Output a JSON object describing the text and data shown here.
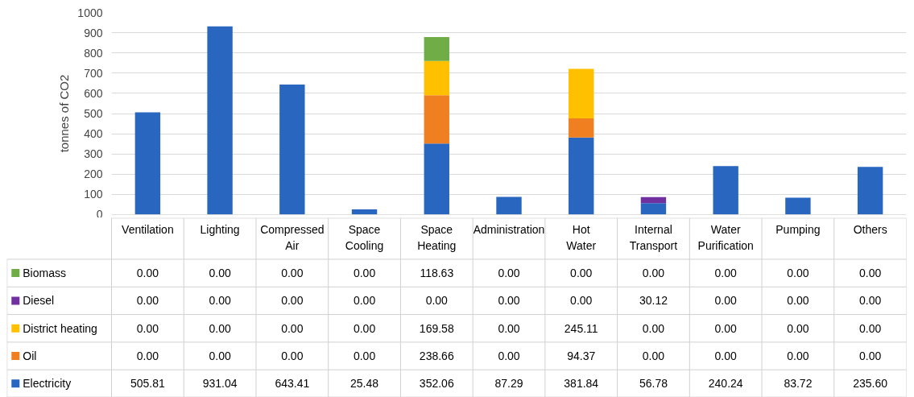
{
  "chart_data": {
    "type": "bar",
    "stacked": true,
    "ylabel": "tonnes of CO2",
    "categories": [
      "Ventilation",
      "Lighting",
      "Compressed Air",
      "Space Cooling",
      "Space Heating",
      "Administration",
      "Hot Water",
      "Internal Transport",
      "Water Purification",
      "Pumping",
      "Others"
    ],
    "series": [
      {
        "name": "Electricity",
        "color": "#2866c0",
        "values": [
          505.81,
          931.04,
          643.41,
          25.48,
          352.06,
          87.29,
          381.84,
          56.78,
          240.24,
          83.72,
          235.6
        ],
        "value_labels": [
          "505.81",
          "931.04",
          "643.41",
          "25.48",
          "352.06",
          "87.29",
          "381.84",
          "56.78",
          "240.24",
          "83.72",
          "235.60"
        ]
      },
      {
        "name": "Oil",
        "color": "#f07f22",
        "values": [
          0,
          0,
          0,
          0,
          238.66,
          0,
          94.37,
          0,
          0,
          0,
          0
        ],
        "value_labels": [
          "0.00",
          "0.00",
          "0.00",
          "0.00",
          "238.66",
          "0.00",
          "94.37",
          "0.00",
          "0.00",
          "0.00",
          "0.00"
        ]
      },
      {
        "name": "District heating",
        "color": "#ffc000",
        "values": [
          0,
          0,
          0,
          0,
          169.58,
          0,
          245.11,
          0,
          0,
          0,
          0
        ],
        "value_labels": [
          "0.00",
          "0.00",
          "0.00",
          "0.00",
          "169.58",
          "0.00",
          "245.11",
          "0.00",
          "0.00",
          "0.00",
          "0.00"
        ]
      },
      {
        "name": "Diesel",
        "color": "#7030a0",
        "values": [
          0,
          0,
          0,
          0,
          0,
          0,
          0,
          30.12,
          0,
          0,
          0
        ],
        "value_labels": [
          "0.00",
          "0.00",
          "0.00",
          "0.00",
          "0.00",
          "0.00",
          "0.00",
          "30.12",
          "0.00",
          "0.00",
          "0.00"
        ]
      },
      {
        "name": "Biomass",
        "color": "#70ad47",
        "values": [
          0,
          0,
          0,
          0,
          118.63,
          0,
          0,
          0,
          0,
          0,
          0
        ],
        "value_labels": [
          "0.00",
          "0.00",
          "0.00",
          "0.00",
          "118.63",
          "0.00",
          "0.00",
          "0.00",
          "0.00",
          "0.00",
          "0.00"
        ]
      }
    ],
    "ylim": [
      0,
      1000
    ],
    "yticks": [
      0,
      100,
      200,
      300,
      400,
      500,
      600,
      700,
      800,
      900,
      1000
    ],
    "grid": "y",
    "legend": "bottom left"
  }
}
